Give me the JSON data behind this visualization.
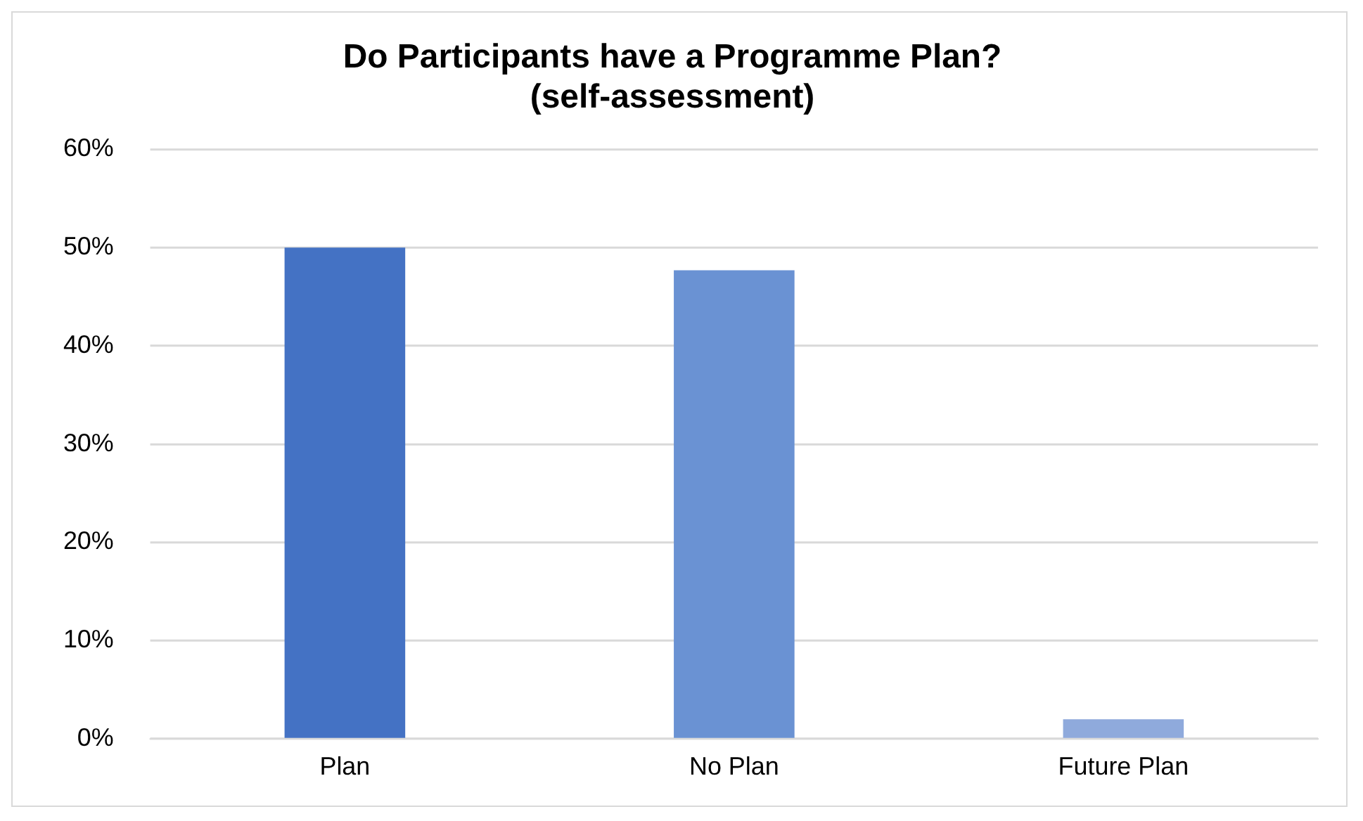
{
  "chart_data": {
    "type": "bar",
    "title": "Do Participants have a Programme Plan? (self-assessment)",
    "categories": [
      "Plan",
      "No Plan",
      "Future Plan"
    ],
    "values": [
      50,
      47.7,
      2
    ],
    "colors": [
      "#4472c4",
      "#6a92d3",
      "#8faadc"
    ],
    "ylim": [
      0,
      60
    ],
    "yticks": [
      {
        "value": 0,
        "label": "0%"
      },
      {
        "value": 10,
        "label": "10%"
      },
      {
        "value": 20,
        "label": "20%"
      },
      {
        "value": 30,
        "label": "30%"
      },
      {
        "value": 40,
        "label": "40%"
      },
      {
        "value": 50,
        "label": "50%"
      },
      {
        "value": 60,
        "label": "60%"
      }
    ],
    "grid": "y",
    "legend": false
  }
}
